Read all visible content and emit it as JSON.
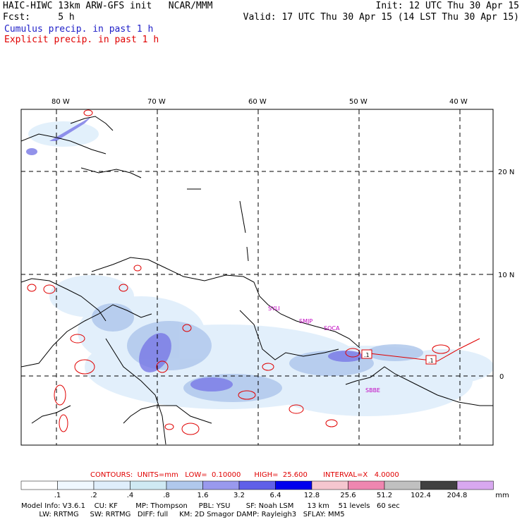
{
  "header": {
    "title": "HAIC-HIWC 13km ARW-GFS init   NCAR/MMM",
    "fcst": "Fcst:     5 h",
    "init": "Init: 12 UTC Thu 30 Apr 15",
    "valid": "Valid: 17 UTC Thu 30 Apr 15 (14 LST Thu 30 Apr 15)",
    "cumulus": "Cumulus precip. in past 1 h",
    "explicit": "Explicit precip. in past 1 h"
  },
  "map": {
    "lon_labels": [
      "80 W",
      "70 W",
      "60 W",
      "50 W",
      "40 W"
    ],
    "lat_labels": [
      "20 N",
      "10 N",
      "0"
    ],
    "sites": [
      "SYLI",
      "SMJP",
      "SOCA",
      "SBBE"
    ],
    "contour_labels": [
      ".1",
      ".1"
    ]
  },
  "contours": {
    "caption": "CONTOURS:  UNITS=mm   LOW=  0.10000      HIGH=  25.600       INTERVAL=X   4.0000"
  },
  "colorbar": {
    "levels": [
      ".1",
      ".2",
      ".4",
      ".8",
      "1.6",
      "3.2",
      "6.4",
      "12.8",
      "25.6",
      "51.2",
      "102.4",
      "204.8"
    ],
    "unit": "mm",
    "colors": [
      "#ffffff",
      "#f0f8ff",
      "#dfeefb",
      "#cfe9f3",
      "#b0c8ec",
      "#9999ee",
      "#6060e8",
      "#0000ee",
      "#f5c6cf",
      "#ef86b0",
      "#c0c0c0",
      "#404040",
      "#d8a8f0"
    ]
  },
  "model_info": {
    "line1": "Model Info: V3.6.1    CU: KF        MP: Thompson     PBL: YSU       SF: Noah LSM      13 km    51 levels   60 sec",
    "line2": "        LW: RRTMG     SW: RRTMG   DIFF: full     KM: 2D Smagor DAMP: Rayleigh3   SFLAY: MM5"
  }
}
